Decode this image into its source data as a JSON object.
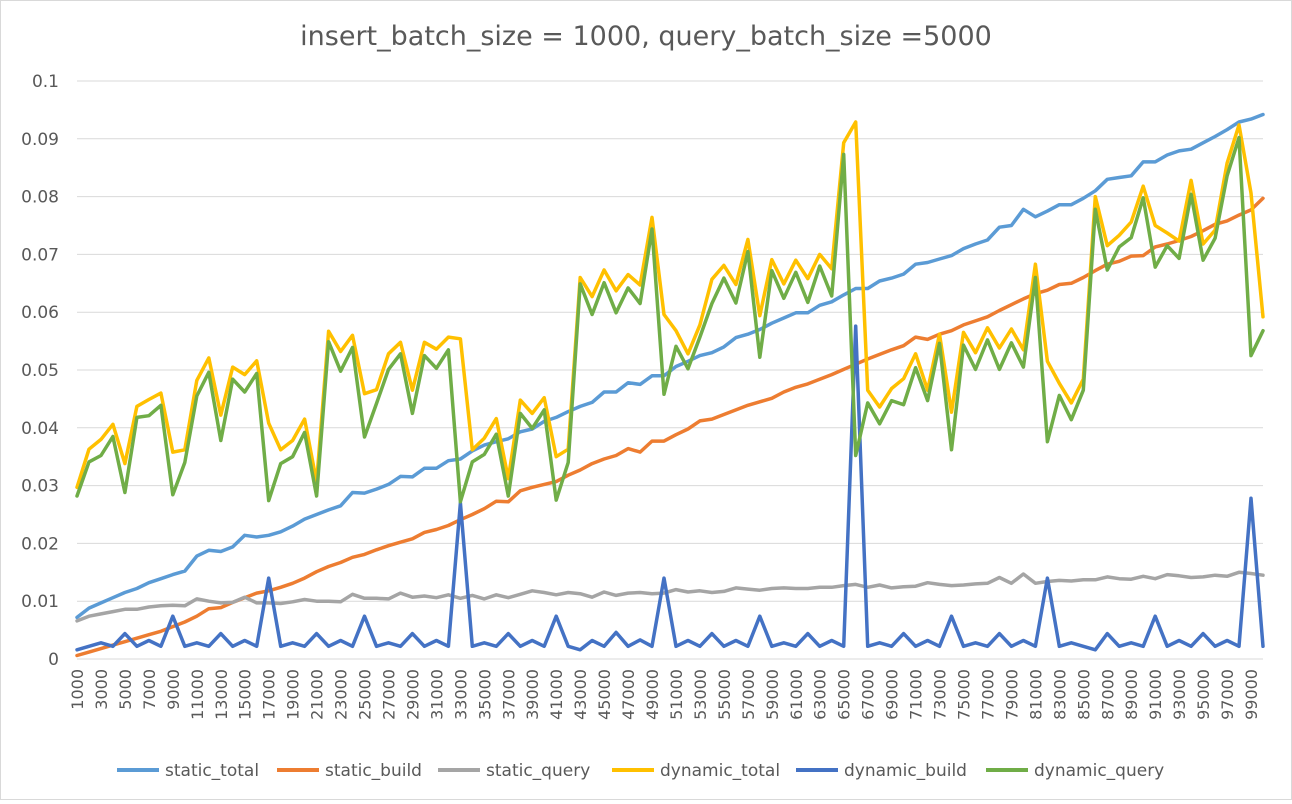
{
  "chart_data": {
    "type": "line",
    "title": "insert_batch_size = 1000, query_batch_size =5000",
    "xlabel": "",
    "ylabel": "",
    "ylim": [
      0,
      0.1
    ],
    "yticks": [
      "0",
      "0.01",
      "0.02",
      "0.03",
      "0.04",
      "0.05",
      "0.06",
      "0.07",
      "0.08",
      "0.09",
      "0.1"
    ],
    "x": [
      1000,
      2000,
      3000,
      4000,
      5000,
      6000,
      7000,
      8000,
      9000,
      10000,
      11000,
      12000,
      13000,
      14000,
      15000,
      16000,
      17000,
      18000,
      19000,
      20000,
      21000,
      22000,
      23000,
      24000,
      25000,
      26000,
      27000,
      28000,
      29000,
      30000,
      31000,
      32000,
      33000,
      34000,
      35000,
      36000,
      37000,
      38000,
      39000,
      40000,
      41000,
      42000,
      43000,
      44000,
      45000,
      46000,
      47000,
      48000,
      49000,
      50000,
      51000,
      52000,
      53000,
      54000,
      55000,
      56000,
      57000,
      58000,
      59000,
      60000,
      61000,
      62000,
      63000,
      64000,
      65000,
      66000,
      67000,
      68000,
      69000,
      70000,
      71000,
      72000,
      73000,
      74000,
      75000,
      76000,
      77000,
      78000,
      79000,
      80000,
      81000,
      82000,
      83000,
      84000,
      85000,
      86000,
      87000,
      88000,
      89000,
      90000,
      91000,
      92000,
      93000,
      94000,
      95000,
      96000,
      97000,
      98000,
      99000,
      100000
    ],
    "xtick_labels": [
      "1000",
      "3000",
      "5000",
      "7000",
      "9000",
      "11000",
      "13000",
      "15000",
      "17000",
      "19000",
      "21000",
      "23000",
      "25000",
      "27000",
      "29000",
      "31000",
      "33000",
      "35000",
      "37000",
      "39000",
      "41000",
      "43000",
      "45000",
      "47000",
      "49000",
      "51000",
      "53000",
      "55000",
      "57000",
      "59000",
      "61000",
      "63000",
      "65000",
      "67000",
      "69000",
      "71000",
      "73000",
      "75000",
      "77000",
      "79000",
      "81000",
      "83000",
      "85000",
      "87000",
      "89000",
      "91000",
      "93000",
      "95000",
      "97000",
      "99000"
    ],
    "grid": true,
    "legend_position": "bottom",
    "series": [
      {
        "name": "static_total",
        "color": "#5b9bd5",
        "values": [
          0.0072,
          0.0088,
          0.0097,
          0.0106,
          0.0115,
          0.0122,
          0.0132,
          0.0139,
          0.0146,
          0.0152,
          0.0178,
          0.0188,
          0.0186,
          0.0194,
          0.0214,
          0.0211,
          0.0214,
          0.022,
          0.023,
          0.0242,
          0.025,
          0.0258,
          0.0265,
          0.0288,
          0.0287,
          0.0294,
          0.0302,
          0.0316,
          0.0315,
          0.033,
          0.033,
          0.0343,
          0.0346,
          0.036,
          0.037,
          0.0376,
          0.0381,
          0.0393,
          0.0398,
          0.0411,
          0.0418,
          0.0428,
          0.0437,
          0.0444,
          0.0462,
          0.0462,
          0.0478,
          0.0475,
          0.049,
          0.049,
          0.0506,
          0.0515,
          0.0525,
          0.053,
          0.054,
          0.0556,
          0.0562,
          0.057,
          0.0581,
          0.059,
          0.0599,
          0.0599,
          0.0612,
          0.0618,
          0.063,
          0.0641,
          0.0641,
          0.0654,
          0.0659,
          0.0666,
          0.0683,
          0.0686,
          0.0692,
          0.0698,
          0.071,
          0.0718,
          0.0725,
          0.0747,
          0.075,
          0.0778,
          0.0765,
          0.0775,
          0.0786,
          0.0786,
          0.0797,
          0.081,
          0.083,
          0.0833,
          0.0836,
          0.086,
          0.086,
          0.0872,
          0.0879,
          0.0882,
          0.0893,
          0.0904,
          0.0916,
          0.0929,
          0.0934,
          0.0942
        ]
      },
      {
        "name": "static_build",
        "color": "#ed7d31",
        "values": [
          0.0006,
          0.0012,
          0.0018,
          0.0024,
          0.003,
          0.0036,
          0.0042,
          0.0048,
          0.0056,
          0.0064,
          0.0074,
          0.0087,
          0.0089,
          0.0098,
          0.0106,
          0.0114,
          0.0118,
          0.0124,
          0.0131,
          0.014,
          0.0151,
          0.016,
          0.0167,
          0.0176,
          0.0181,
          0.0189,
          0.0196,
          0.0202,
          0.0208,
          0.0219,
          0.0224,
          0.0231,
          0.0241,
          0.025,
          0.026,
          0.0273,
          0.0272,
          0.0291,
          0.0297,
          0.0302,
          0.0307,
          0.0318,
          0.0327,
          0.0338,
          0.0346,
          0.0352,
          0.0364,
          0.0358,
          0.0377,
          0.0377,
          0.0388,
          0.0398,
          0.0412,
          0.0415,
          0.0423,
          0.0431,
          0.0439,
          0.0445,
          0.0451,
          0.0462,
          0.047,
          0.0476,
          0.0484,
          0.0492,
          0.0501,
          0.051,
          0.0519,
          0.0527,
          0.0535,
          0.0542,
          0.0557,
          0.0553,
          0.0562,
          0.0568,
          0.0578,
          0.0585,
          0.0592,
          0.0603,
          0.0613,
          0.0623,
          0.0632,
          0.0638,
          0.0648,
          0.065,
          0.066,
          0.0672,
          0.0683,
          0.0688,
          0.0697,
          0.0698,
          0.0713,
          0.0718,
          0.0724,
          0.0731,
          0.0741,
          0.0752,
          0.0758,
          0.0768,
          0.0777,
          0.0797
        ]
      },
      {
        "name": "static_query",
        "color": "#a5a5a5",
        "values": [
          0.0066,
          0.0074,
          0.0078,
          0.0082,
          0.0086,
          0.0086,
          0.009,
          0.0092,
          0.0093,
          0.0092,
          0.0104,
          0.01,
          0.0097,
          0.0098,
          0.0107,
          0.0097,
          0.0097,
          0.0096,
          0.0099,
          0.0103,
          0.01,
          0.01,
          0.0099,
          0.0112,
          0.0105,
          0.0105,
          0.0104,
          0.0114,
          0.0107,
          0.0109,
          0.0106,
          0.0111,
          0.0105,
          0.011,
          0.0104,
          0.0111,
          0.0106,
          0.0112,
          0.0118,
          0.0115,
          0.0111,
          0.0115,
          0.0113,
          0.0107,
          0.0116,
          0.011,
          0.0114,
          0.0115,
          0.0113,
          0.0114,
          0.012,
          0.0116,
          0.0118,
          0.0115,
          0.0117,
          0.0123,
          0.0121,
          0.0119,
          0.0122,
          0.0123,
          0.0122,
          0.0122,
          0.0124,
          0.0124,
          0.0127,
          0.0129,
          0.0124,
          0.0128,
          0.0123,
          0.0125,
          0.0126,
          0.0132,
          0.0129,
          0.0127,
          0.0128,
          0.013,
          0.0131,
          0.0141,
          0.0131,
          0.0147,
          0.0131,
          0.0134,
          0.0136,
          0.0135,
          0.0137,
          0.0137,
          0.0142,
          0.0139,
          0.0138,
          0.0143,
          0.0139,
          0.0146,
          0.0144,
          0.0141,
          0.0142,
          0.0145,
          0.0143,
          0.015,
          0.0148,
          0.0145
        ]
      },
      {
        "name": "dynamic_total",
        "color": "#ffc000",
        "values": [
          0.0297,
          0.0363,
          0.038,
          0.0406,
          0.0338,
          0.0437,
          0.0449,
          0.046,
          0.0358,
          0.0362,
          0.0482,
          0.0521,
          0.0422,
          0.0505,
          0.0492,
          0.0516,
          0.0408,
          0.0362,
          0.0378,
          0.0415,
          0.0306,
          0.0567,
          0.0532,
          0.056,
          0.0459,
          0.0466,
          0.0528,
          0.0548,
          0.0465,
          0.0548,
          0.0536,
          0.0557,
          0.0554,
          0.0362,
          0.0382,
          0.0416,
          0.0312,
          0.0448,
          0.0425,
          0.0452,
          0.035,
          0.0363,
          0.066,
          0.0627,
          0.0673,
          0.0637,
          0.0665,
          0.0647,
          0.0764,
          0.0596,
          0.0568,
          0.0528,
          0.0578,
          0.0657,
          0.0681,
          0.0648,
          0.0726,
          0.0594,
          0.0691,
          0.0649,
          0.069,
          0.0658,
          0.07,
          0.0675,
          0.0893,
          0.0929,
          0.0465,
          0.0436,
          0.0468,
          0.0485,
          0.0528,
          0.0465,
          0.0562,
          0.0427,
          0.0565,
          0.053,
          0.0573,
          0.0538,
          0.0571,
          0.0535,
          0.0683,
          0.0515,
          0.0477,
          0.0443,
          0.0484,
          0.08,
          0.0715,
          0.0733,
          0.0756,
          0.0818,
          0.075,
          0.0737,
          0.0723,
          0.0828,
          0.0718,
          0.0742,
          0.0858,
          0.0924,
          0.0806,
          0.0592
        ]
      },
      {
        "name": "dynamic_build",
        "color": "#4472c4",
        "values": [
          0.0016,
          0.0022,
          0.0028,
          0.0022,
          0.0044,
          0.0022,
          0.0032,
          0.0022,
          0.0074,
          0.0022,
          0.0028,
          0.0022,
          0.0044,
          0.0022,
          0.0032,
          0.0022,
          0.014,
          0.0022,
          0.0028,
          0.0022,
          0.0044,
          0.0022,
          0.0032,
          0.0022,
          0.0074,
          0.0022,
          0.0028,
          0.0022,
          0.0044,
          0.0022,
          0.0032,
          0.0022,
          0.027,
          0.0022,
          0.0028,
          0.0022,
          0.0044,
          0.0022,
          0.0032,
          0.0022,
          0.0074,
          0.0022,
          0.0016,
          0.0032,
          0.0022,
          0.0046,
          0.0022,
          0.0033,
          0.0022,
          0.014,
          0.0022,
          0.0032,
          0.0022,
          0.0044,
          0.0022,
          0.0032,
          0.0022,
          0.0074,
          0.0022,
          0.0028,
          0.0022,
          0.0044,
          0.0022,
          0.0032,
          0.0022,
          0.0576,
          0.0022,
          0.0028,
          0.0022,
          0.0044,
          0.0022,
          0.0032,
          0.0022,
          0.0074,
          0.0022,
          0.0028,
          0.0022,
          0.0044,
          0.0022,
          0.0032,
          0.0022,
          0.014,
          0.0022,
          0.0028,
          0.0022,
          0.0016,
          0.0044,
          0.0022,
          0.0028,
          0.0022,
          0.0074,
          0.0022,
          0.0032,
          0.0022,
          0.0044,
          0.0022,
          0.0032,
          0.0022,
          0.0278,
          0.0022
        ]
      },
      {
        "name": "dynamic_query",
        "color": "#70ad47",
        "values": [
          0.0282,
          0.0341,
          0.0352,
          0.0385,
          0.0288,
          0.0418,
          0.0421,
          0.0439,
          0.0284,
          0.034,
          0.0455,
          0.0496,
          0.0378,
          0.0484,
          0.0462,
          0.0494,
          0.0274,
          0.0338,
          0.035,
          0.0392,
          0.0282,
          0.0549,
          0.0498,
          0.0539,
          0.0384,
          0.0442,
          0.0501,
          0.0528,
          0.0425,
          0.0525,
          0.0503,
          0.0535,
          0.0272,
          0.0341,
          0.0354,
          0.0389,
          0.0282,
          0.0425,
          0.0399,
          0.0431,
          0.0275,
          0.034,
          0.0649,
          0.0596,
          0.0651,
          0.0599,
          0.0642,
          0.0615,
          0.0744,
          0.0458,
          0.0541,
          0.0502,
          0.0557,
          0.0615,
          0.0659,
          0.0616,
          0.0705,
          0.0522,
          0.0672,
          0.0624,
          0.0669,
          0.0617,
          0.068,
          0.0628,
          0.0873,
          0.0352,
          0.0443,
          0.0407,
          0.0447,
          0.044,
          0.0504,
          0.0447,
          0.0546,
          0.0362,
          0.0543,
          0.0501,
          0.0552,
          0.0501,
          0.0547,
          0.0505,
          0.066,
          0.0376,
          0.0456,
          0.0414,
          0.0465,
          0.0778,
          0.0673,
          0.0713,
          0.0729,
          0.0798,
          0.0678,
          0.0715,
          0.0693,
          0.0804,
          0.069,
          0.0728,
          0.0836,
          0.0902,
          0.0525,
          0.0568
        ]
      }
    ]
  }
}
